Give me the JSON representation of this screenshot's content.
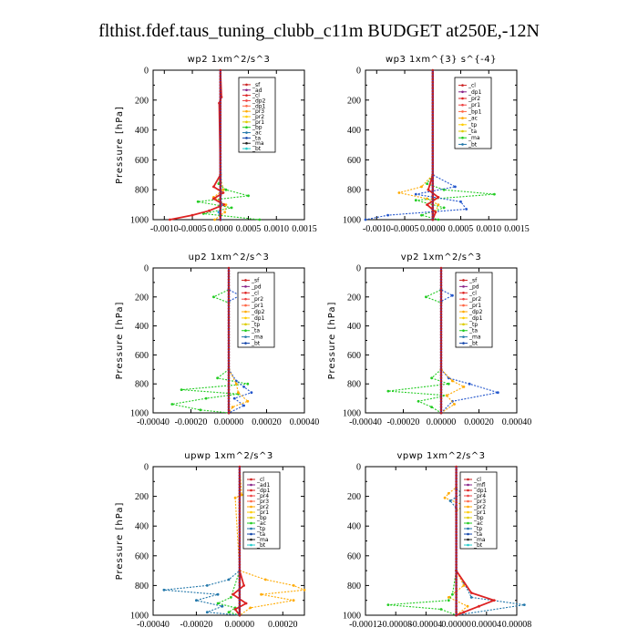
{
  "figure_title": "flthist.fdef.taus_tuning_clubb_c11m  BUDGET at250E,-12N",
  "chart_data": [
    {
      "type": "line",
      "title": "wp2   1xm^2/s^3",
      "ylabel": "Pressure [hPa]",
      "ylim": [
        1000,
        0
      ],
      "xlim": [
        -0.0012,
        0.0015
      ],
      "yticks": [
        "0",
        "200",
        "400",
        "600",
        "800",
        "1000"
      ],
      "xticks": [
        {
          "v": -0.001,
          "label": "-0.0010"
        },
        {
          "v": -0.0005,
          "label": "-0.0005"
        },
        {
          "v": 0.0,
          "label": "0.0000"
        },
        {
          "v": 0.0005,
          "label": "0.0005"
        },
        {
          "v": 0.001,
          "label": "0.0010"
        },
        {
          "v": 0.0015,
          "label": "0.0015"
        }
      ],
      "legend": [
        "_sf",
        "_ad",
        "_cl",
        "_dp2",
        "_dp1",
        "_pr3",
        "_pr2",
        "_pr1",
        "_bp",
        "_ac",
        "_ta",
        "_ma",
        "_bt"
      ],
      "series": [
        {
          "name": "_pr1",
          "color": "#22cc22",
          "p": [
            0,
            700,
            760,
            800,
            840,
            880,
            920,
            960,
            1000
          ],
          "v": [
            0,
            0,
            -3e-05,
            0.0001,
            0.0005,
            -0.0004,
            0.0002,
            -0.0003,
            0.0007
          ]
        },
        {
          "name": "_dp1",
          "color": "#ffaa00",
          "p": [
            0,
            700,
            800,
            850,
            900,
            950,
            1000
          ],
          "v": [
            0,
            0,
            5e-05,
            -0.00012,
            0.0001,
            8e-05,
            -0.0001
          ]
        },
        {
          "name": "_cl",
          "color": "#dd2222",
          "p": [
            0,
            180,
            220,
            700,
            780,
            820,
            860,
            900,
            940,
            970,
            1000
          ],
          "v": [
            0,
            2e-05,
            -2e-05,
            0,
            -0.00012,
            5e-05,
            -0.00012,
            6e-05,
            -0.0002,
            -0.0005,
            -0.0009
          ]
        },
        {
          "name": "_ma",
          "color": "#22aaee",
          "p": [
            0,
            900,
            950,
            1000
          ],
          "v": [
            0,
            2e-05,
            -3e-05,
            1e-05
          ]
        },
        {
          "name": "_bt",
          "color": "#552299",
          "p": [
            0,
            1000
          ],
          "v": [
            0,
            0
          ]
        }
      ]
    },
    {
      "type": "line",
      "title": "wp3   1xm^{3} s^{-4}",
      "ylabel": "",
      "ylim": [
        1000,
        0
      ],
      "xlim": [
        -0.0012,
        0.0015
      ],
      "yticks": [
        "0",
        "200",
        "400",
        "600",
        "800",
        "1000"
      ],
      "xticks": [
        {
          "v": -0.001,
          "label": "-0.0010"
        },
        {
          "v": -0.0005,
          "label": "-0.0005"
        },
        {
          "v": 0.0,
          "label": "0.0000"
        },
        {
          "v": 0.0005,
          "label": "0.0005"
        },
        {
          "v": 0.001,
          "label": "0.0010"
        },
        {
          "v": 0.0015,
          "label": "0.0015"
        }
      ],
      "legend": [
        "_cl",
        "_dp1",
        "_pr2",
        "_pr1",
        "_bp1",
        "_ac",
        "_tp",
        "_ta",
        "_ma",
        "_bt"
      ],
      "series": [
        {
          "name": "_pr1",
          "color": "#22cc22",
          "p": [
            0,
            700,
            760,
            800,
            830,
            870,
            920,
            970,
            1000
          ],
          "v": [
            0,
            0,
            -0.0001,
            0.0002,
            0.0011,
            -0.0003,
            0.0002,
            -0.0002,
            0.0001
          ]
        },
        {
          "name": "_pr2",
          "color": "#ffaa00",
          "p": [
            0,
            700,
            780,
            820,
            860,
            900,
            1000
          ],
          "v": [
            0,
            0,
            -0.0002,
            -0.0006,
            -0.0001,
            0.0001,
            0
          ]
        },
        {
          "name": "_tp",
          "color": "#2255cc",
          "p": [
            0,
            700,
            780,
            830,
            880,
            930,
            970,
            1000
          ],
          "v": [
            0,
            0,
            0.0004,
            -0.0003,
            0.0005,
            0.0006,
            -0.0008,
            -0.0012
          ]
        },
        {
          "name": "_cl",
          "color": "#dd2222",
          "p": [
            0,
            700,
            800,
            850,
            900,
            950,
            1000
          ],
          "v": [
            0,
            0,
            -8e-05,
            0.0001,
            -0.0001,
            5e-05,
            0
          ]
        },
        {
          "name": "_bt",
          "color": "#552299",
          "p": [
            0,
            1000
          ],
          "v": [
            0,
            0
          ]
        }
      ]
    },
    {
      "type": "line",
      "title": "up2   1xm^2/s^3",
      "ylabel": "Pressure [hPa]",
      "ylim": [
        1000,
        0
      ],
      "xlim": [
        -0.0004,
        0.0004
      ],
      "yticks": [
        "0",
        "200",
        "400",
        "600",
        "800",
        "1000"
      ],
      "xticks": [
        {
          "v": -0.0004,
          "label": "-0.00040"
        },
        {
          "v": -0.0002,
          "label": "-0.00020"
        },
        {
          "v": 0.0,
          "label": "0.00000"
        },
        {
          "v": 0.0002,
          "label": "0.00020"
        },
        {
          "v": 0.0004,
          "label": "0.00040"
        }
      ],
      "legend": [
        "_sf",
        "_pd",
        "_cl",
        "_pr2",
        "_pr1",
        "_dp2",
        "_dp1",
        "_tp",
        "_ta",
        "_ma",
        "_bt"
      ],
      "series": [
        {
          "name": "_dp2",
          "color": "#22cc22",
          "p": [
            0,
            150,
            200,
            240,
            700,
            760,
            800,
            840,
            870,
            900,
            940,
            980,
            1000
          ],
          "v": [
            0,
            0,
            -8e-05,
            0,
            0,
            -6e-05,
            0.0001,
            -0.00025,
            5e-05,
            -0.00012,
            -0.0003,
            -0.00015,
            0
          ]
        },
        {
          "name": "_dp1",
          "color": "#2255cc",
          "p": [
            0,
            150,
            190,
            230,
            700,
            780,
            820,
            860,
            900,
            950,
            1000
          ],
          "v": [
            0,
            0,
            6e-05,
            0,
            0,
            4e-05,
            8e-05,
            0.00012,
            3e-05,
            8e-05,
            0
          ]
        },
        {
          "name": "_pr2",
          "color": "#ffaa00",
          "p": [
            0,
            700,
            800,
            860,
            920,
            960,
            1000
          ],
          "v": [
            0,
            0,
            4e-05,
            5e-05,
            0.0001,
            2e-05,
            0
          ]
        },
        {
          "name": "_cl",
          "color": "#dd2222",
          "p": [
            0,
            1000
          ],
          "v": [
            0,
            0
          ]
        },
        {
          "name": "_bt",
          "color": "#552299",
          "p": [
            0,
            1000
          ],
          "v": [
            0,
            0
          ]
        }
      ]
    },
    {
      "type": "line",
      "title": "vp2   1xm^2/s^3",
      "ylabel": "Pressure [hPa]",
      "ylim": [
        1000,
        0
      ],
      "xlim": [
        -0.0004,
        0.0004
      ],
      "yticks": [
        "0",
        "200",
        "400",
        "600",
        "800",
        "1000"
      ],
      "xticks": [
        {
          "v": -0.0004,
          "label": "-0.00040"
        },
        {
          "v": -0.0002,
          "label": "-0.00020"
        },
        {
          "v": 0.0,
          "label": "0.00000"
        },
        {
          "v": 0.0002,
          "label": "0.00020"
        },
        {
          "v": 0.0004,
          "label": "0.00040"
        }
      ],
      "legend": [
        "_sf",
        "_pd",
        "_cl",
        "_pr2",
        "_pr1",
        "_dp2",
        "_dp1",
        "_tp",
        "_ta",
        "_ma",
        "_bt"
      ],
      "series": [
        {
          "name": "_dp2",
          "color": "#22cc22",
          "p": [
            0,
            150,
            200,
            240,
            700,
            760,
            800,
            850,
            880,
            920,
            960,
            1000
          ],
          "v": [
            0,
            0,
            -8e-05,
            0,
            0,
            -5e-05,
            4e-05,
            -0.00028,
            3e-05,
            -0.00012,
            -5e-05,
            0
          ]
        },
        {
          "name": "_dp1",
          "color": "#2255cc",
          "p": [
            0,
            150,
            190,
            230,
            700,
            760,
            800,
            860,
            920,
            1000
          ],
          "v": [
            0,
            0,
            6e-05,
            0,
            0,
            4e-05,
            0.00015,
            0.0003,
            6e-05,
            0
          ]
        },
        {
          "name": "_pr2",
          "color": "#ffaa00",
          "p": [
            0,
            700,
            780,
            820,
            880,
            940,
            1000
          ],
          "v": [
            0,
            0,
            6e-05,
            0.00012,
            3e-05,
            7e-05,
            0
          ]
        },
        {
          "name": "_cl",
          "color": "#dd2222",
          "p": [
            0,
            1000
          ],
          "v": [
            0,
            0
          ]
        },
        {
          "name": "_bt",
          "color": "#552299",
          "p": [
            0,
            1000
          ],
          "v": [
            0,
            0
          ]
        }
      ]
    },
    {
      "type": "line",
      "title": "upwp   1xm^2/s^3",
      "ylabel": "Pressure [hPa]",
      "ylim": [
        1000,
        0
      ],
      "xlim": [
        -0.0004,
        0.0003
      ],
      "yticks": [
        "0",
        "200",
        "400",
        "600",
        "800",
        "1000"
      ],
      "xticks": [
        {
          "v": -0.0004,
          "label": "-0.00040"
        },
        {
          "v": -0.0002,
          "label": "-0.00020"
        },
        {
          "v": 0.0,
          "label": "0.00000"
        },
        {
          "v": 0.0002,
          "label": "0.00020"
        }
      ],
      "legend": [
        "_cl",
        "_ad1",
        "_dp1",
        "_pr4",
        "_pr3",
        "_pr2",
        "_pr1",
        "_bp",
        "_ac",
        "_tp",
        "_ta",
        "_ma",
        "_bt"
      ],
      "series": [
        {
          "name": "_tp",
          "color": "#2277aa",
          "p": [
            0,
            700,
            760,
            800,
            830,
            860,
            900,
            940,
            980,
            1000
          ],
          "v": [
            0,
            0,
            -5e-05,
            -0.00015,
            -0.00035,
            -0.0001,
            -0.0002,
            -8e-05,
            -0.00015,
            0
          ]
        },
        {
          "name": "_pr1",
          "color": "#ffaa00",
          "p": [
            0,
            190,
            210,
            700,
            760,
            800,
            830,
            860,
            900,
            950,
            1000
          ],
          "v": [
            0,
            1e-05,
            -2e-05,
            0,
            0.00012,
            0.00025,
            0.0003,
            0.0001,
            0.00025,
            5e-05,
            0
          ]
        },
        {
          "name": "_bp",
          "color": "#22cc22",
          "p": [
            0,
            700,
            880,
            920,
            950,
            980,
            1000
          ],
          "v": [
            0,
            0,
            -4e-05,
            -0.0001,
            -2e-05,
            -5e-05,
            0
          ]
        },
        {
          "name": "_cl",
          "color": "#dd2222",
          "p": [
            0,
            700,
            800,
            860,
            920,
            960,
            1000
          ],
          "v": [
            0,
            0,
            2e-05,
            -3e-05,
            3e-05,
            -2e-05,
            0
          ]
        },
        {
          "name": "_bt",
          "color": "#552299",
          "p": [
            0,
            1000
          ],
          "v": [
            0,
            0
          ]
        }
      ]
    },
    {
      "type": "line",
      "title": "vpwp   1xm^2/s^3",
      "ylabel": "",
      "ylim": [
        1000,
        0
      ],
      "xlim": [
        -0.00012,
        8e-05
      ],
      "yticks": [
        "0",
        "200",
        "400",
        "600",
        "800",
        "1000"
      ],
      "xticks": [
        {
          "v": -0.00012,
          "label": "-0.00012"
        },
        {
          "v": -8e-05,
          "label": "-0.00008"
        },
        {
          "v": -4e-05,
          "label": "-0.00004"
        },
        {
          "v": 0.0,
          "label": "0.00000"
        },
        {
          "v": 4e-05,
          "label": "0.00004"
        },
        {
          "v": 8e-05,
          "label": "0.00008"
        }
      ],
      "legend": [
        "_cl",
        "_mfl",
        "_dp1",
        "_pr4",
        "_pr3",
        "_pr2",
        "_pr1",
        "_bp",
        "_ac",
        "_tp",
        "_ta",
        "_ma",
        "_bt"
      ],
      "series": [
        {
          "name": "_pr1",
          "color": "#ffaa00",
          "p": [
            0,
            140,
            180,
            210,
            260,
            300,
            700,
            800,
            880,
            940,
            1000
          ],
          "v": [
            0,
            0,
            -1e-05,
            -1.5e-05,
            1e-05,
            0,
            0,
            1e-05,
            -1e-05,
            1.5e-05,
            0
          ]
        },
        {
          "name": "_tp",
          "color": "#2277aa",
          "p": [
            0,
            150,
            180,
            230,
            280,
            700,
            780,
            880,
            930,
            1000
          ],
          "v": [
            0,
            0,
            8e-06,
            -8e-06,
            0,
            0,
            1e-05,
            2e-05,
            9e-05,
            0
          ]
        },
        {
          "name": "_bp",
          "color": "#22cc22",
          "p": [
            0,
            700,
            860,
            900,
            930,
            960,
            1000
          ],
          "v": [
            0,
            0,
            -5e-06,
            -1e-05,
            -9e-05,
            -2e-05,
            0
          ]
        },
        {
          "name": "_cl",
          "color": "#dd2222",
          "p": [
            0,
            700,
            850,
            900,
            940,
            980,
            1000
          ],
          "v": [
            0,
            0,
            2e-05,
            5e-05,
            3e-05,
            1e-05,
            0
          ]
        },
        {
          "name": "_bt",
          "color": "#552299",
          "p": [
            0,
            1000
          ],
          "v": [
            0,
            0
          ]
        }
      ]
    }
  ]
}
